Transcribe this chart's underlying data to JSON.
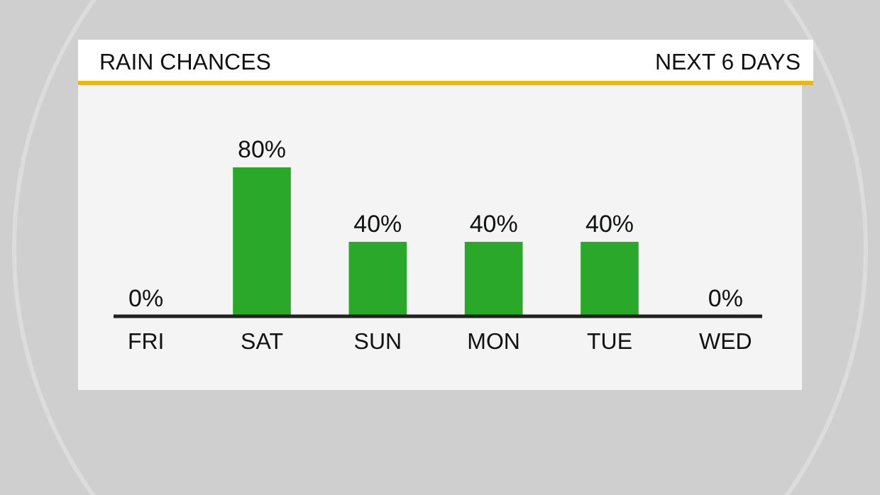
{
  "chart_data": {
    "type": "bar",
    "title": "RAIN CHANCES",
    "subtitle": "NEXT 6 DAYS",
    "categories": [
      "FRI",
      "SAT",
      "SUN",
      "MON",
      "TUE",
      "WED"
    ],
    "values": [
      0,
      80,
      40,
      40,
      40,
      0
    ],
    "value_labels": [
      "0%",
      "80%",
      "40%",
      "40%",
      "40%",
      "0%"
    ],
    "color": "#2aa82a"
  }
}
